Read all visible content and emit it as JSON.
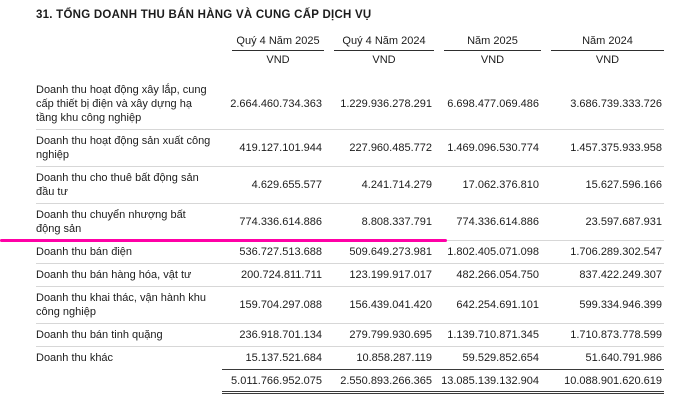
{
  "title": "31. TỔNG DOANH THU BÁN HÀNG VÀ CUNG CẤP DỊCH VỤ",
  "table": {
    "columns": [
      "Quý 4 Năm 2025",
      "Quý 4 Năm 2024",
      "Năm 2025",
      "Năm 2024"
    ],
    "unit": "VND",
    "rows": [
      {
        "label": "Doanh thu hoạt động xây lắp, cung cấp thiết bị điện và xây dựng hạ tầng khu công nghiệp",
        "values": [
          "2.664.460.734.363",
          "1.229.936.278.291",
          "6.698.477.069.486",
          "3.686.739.333.726"
        ]
      },
      {
        "label": "Doanh thu hoạt động sản xuất công nghiệp",
        "values": [
          "419.127.101.944",
          "227.960.485.772",
          "1.469.096.530.774",
          "1.457.375.933.958"
        ]
      },
      {
        "label": "Doanh thu cho thuê bất động sản đầu tư",
        "values": [
          "4.629.655.577",
          "4.241.714.279",
          "17.062.376.810",
          "15.627.596.166"
        ]
      },
      {
        "label": "Doanh thu chuyển nhượng bất động sản",
        "values": [
          "774.336.614.886",
          "8.808.337.791",
          "774.336.614.886",
          "23.597.687.931"
        ]
      },
      {
        "label": "Doanh thu bán điện",
        "values": [
          "536.727.513.688",
          "509.649.273.981",
          "1.802.405.071.098",
          "1.706.289.302.547"
        ]
      },
      {
        "label": "Doanh thu bán hàng hóa, vật tư",
        "values": [
          "200.724.811.711",
          "123.199.917.017",
          "482.266.054.750",
          "837.422.249.307"
        ]
      },
      {
        "label": "Doanh thu khai thác, vận hành khu công nghiệp",
        "values": [
          "159.704.297.088",
          "156.439.041.420",
          "642.254.691.101",
          "599.334.946.399"
        ]
      },
      {
        "label": "Doanh thu bán tinh quặng",
        "values": [
          "236.918.701.134",
          "279.799.930.695",
          "1.139.710.871.345",
          "1.710.873.778.599"
        ]
      },
      {
        "label": "Doanh thu khác",
        "values": [
          "15.137.521.684",
          "10.858.287.119",
          "59.529.852.654",
          "51.640.791.986"
        ]
      }
    ],
    "total": [
      "5.011.766.952.075",
      "2.550.893.266.365",
      "13.085.139.132.904",
      "10.088.901.620.619"
    ]
  },
  "highlight": {
    "color": "#ff00a6"
  }
}
